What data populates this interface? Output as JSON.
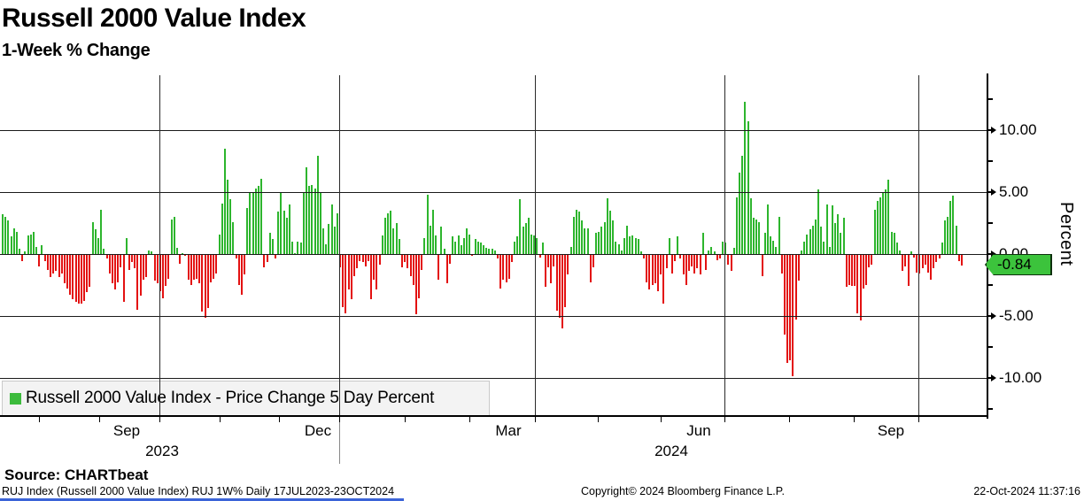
{
  "title": "Russell 2000 Value Index",
  "subtitle": "1-Week % Change",
  "y_axis": {
    "label": "Percent",
    "tick_labels": [
      "10.00",
      "5.00",
      "0.00",
      "-5.00",
      "-10.00"
    ],
    "tick_values": [
      10,
      5,
      0,
      -5,
      -10
    ],
    "minor_tick_values": [
      12.5,
      7.5,
      2.5,
      -2.5,
      -7.5,
      -12.5
    ]
  },
  "x_axis": {
    "month_labels": [
      "Sep",
      "Dec",
      "Mar",
      "Jun",
      "Sep"
    ],
    "year_labels": [
      "2023",
      "2024"
    ]
  },
  "last_value_tag": "-0.84",
  "legend": {
    "label": "Russell 2000 Value Index - Price Change 5 Day Percent"
  },
  "source": "Source: CHARTbeat",
  "footer": {
    "left": "RUJ Index (Russell 2000 Value Index) RUJ 1W%  Daily 17JUL2023-23OCT2024",
    "center": "Copyright© 2024 Bloomberg Finance L.P.",
    "right": "22-Oct-2024 11:37:16"
  },
  "colors": {
    "positive": "#2db52d",
    "negative": "#e31111",
    "tag_fill": "#3cc33c",
    "legend_swatch": "#3cbb3c",
    "bottom_bar": "#3b64d8"
  },
  "chart_data": {
    "type": "bar",
    "title": "Russell 2000 Value Index",
    "subtitle": "1-Week % Change",
    "ylabel": "Percent",
    "ylim": [
      -13,
      14.4
    ],
    "x_range": "Daily 17JUL2023 - 23OCT2024",
    "grid": true,
    "legend_position": "bottom-left",
    "last_value": -0.84,
    "values": [
      3.2,
      3.0,
      2.7,
      1.4,
      2.1,
      1.8,
      0.4,
      -0.5,
      0.2,
      1.5,
      1.6,
      1.8,
      0.6,
      -0.9,
      0.7,
      -0.5,
      -1.2,
      -1.8,
      -1.5,
      -1.3,
      -1.8,
      -1.5,
      -2.3,
      -2.7,
      -3.2,
      -3.6,
      -3.8,
      -3.9,
      -3.9,
      -3.7,
      -3.0,
      -2.6,
      2.6,
      2.0,
      1.3,
      3.6,
      0.4,
      -0.3,
      -1.5,
      -2.3,
      -2.8,
      -2.2,
      -1.0,
      -3.8,
      1.3,
      -1.2,
      -0.6,
      -1.1,
      -4.4,
      -3.3,
      -2.0,
      -1.8,
      0.3,
      0.2,
      -2.1,
      -2.3,
      -2.9,
      -3.5,
      -2.5,
      -1.9,
      2.8,
      3.0,
      0.5,
      -0.7,
      0.1,
      -0.1,
      -2.0,
      -2.4,
      -2.0,
      -1.9,
      -2.3,
      -4.6,
      -5.1,
      -4.3,
      -2.2,
      -1.9,
      -1.5,
      1.6,
      4.1,
      8.5,
      6.0,
      4.4,
      2.6,
      -0.3,
      -2.4,
      -3.2,
      -1.6,
      3.7,
      5.0,
      4.9,
      5.3,
      5.5,
      6.1,
      -1.0,
      -0.6,
      1.7,
      1.2,
      -0.3,
      3.4,
      4.9,
      3.5,
      2.9,
      4.0,
      1.0,
      0.1,
      1.0,
      0.9,
      4.9,
      7.0,
      5.5,
      5.6,
      5.3,
      7.9,
      5.0,
      2.1,
      0.8,
      2.4,
      4.0,
      2.2,
      3.3,
      -1.0,
      -4.2,
      -4.7,
      -2.8,
      -3.6,
      -1.7,
      -1.1,
      -0.5,
      -0.6,
      -0.9,
      -0.5,
      -3.6,
      -2.0,
      -2.8,
      -0.8,
      1.5,
      2.9,
      3.3,
      3.5,
      2.1,
      2.5,
      1.2,
      -1.0,
      -0.6,
      -1.1,
      -1.7,
      -2.4,
      -4.8,
      -3.5,
      -1.2,
      1.3,
      4.8,
      2.3,
      3.6,
      1.5,
      -2.0,
      2.2,
      0.4,
      -2.3,
      -0.7,
      1.4,
      1.0,
      1.5,
      0.7,
      1.3,
      2.1,
      1.6,
      -0.1,
      1.2,
      1.0,
      0.9,
      0.7,
      0.5,
      0.4,
      0.4,
      0.3,
      -0.3,
      -2.7,
      -2.0,
      -2.2,
      -1.9,
      -0.6,
      1.0,
      1.4,
      4.4,
      2.2,
      2.5,
      2.9,
      1.6,
      1.5,
      1.3,
      -0.2,
      0.9,
      -2.6,
      -1.0,
      -2.3,
      -0.9,
      -4.5,
      -5.1,
      -5.9,
      -4.2,
      -1.6,
      0.6,
      3.0,
      3.6,
      3.4,
      2.7,
      2.1,
      2.1,
      -2.2,
      -1.0,
      1.7,
      1.8,
      2.2,
      2.6,
      4.5,
      3.5,
      2.7,
      1.0,
      0.8,
      0.3,
      1.3,
      2.3,
      1.4,
      1.5,
      1.3,
      1.2,
      0.2,
      -0.3,
      -2.2,
      -2.8,
      -2.4,
      -2.3,
      -2.9,
      -1.6,
      -3.9,
      -1.1,
      1.3,
      -1.5,
      -0.5,
      1.4,
      -0.3,
      -1.6,
      -2.4,
      -1.3,
      -0.9,
      -1.5,
      -1.1,
      -1.6,
      1.7,
      -1.2,
      0.3,
      0.6,
      0.2,
      -0.4,
      -0.3,
      1.0,
      0.9,
      -0.8,
      -1.3,
      0.5,
      4.6,
      6.6,
      7.9,
      12.3,
      10.7,
      4.5,
      2.9,
      2.8,
      2.6,
      -1.7,
      1.7,
      4.0,
      1.4,
      1.1,
      0.6,
      3.0,
      -1.5,
      -6.4,
      -8.7,
      -8.5,
      -9.8,
      -5.2,
      -2.1,
      0.3,
      1.0,
      1.6,
      2.0,
      2.3,
      2.8,
      5.2,
      2.2,
      1.0,
      4.0,
      0.6,
      3.9,
      2.5,
      3.2,
      1.7,
      2.9,
      -2.6,
      -2.4,
      -2.5,
      -2.5,
      -4.7,
      -5.3,
      -2.7,
      -2.4,
      -1.0,
      -0.8,
      3.6,
      4.3,
      4.6,
      5.0,
      5.2,
      6.0,
      1.8,
      1.7,
      0.9,
      0.3,
      -1.3,
      -0.9,
      -2.5,
      0.2,
      -0.2,
      -1.4,
      -1.5,
      -1.1,
      -0.8,
      -1.4,
      -2.0,
      -1.1,
      -0.6,
      -0.3,
      0.9,
      2.7,
      3.0,
      4.3,
      4.7,
      2.3,
      -0.5,
      -0.84
    ]
  }
}
